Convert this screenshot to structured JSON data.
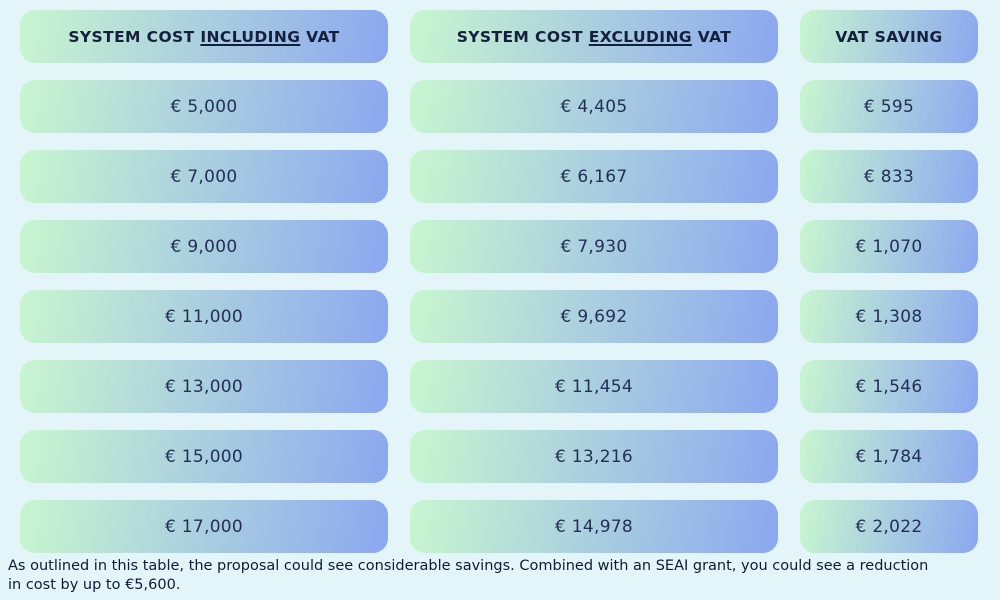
{
  "theme": {
    "background": "#e4f5fa",
    "pill_start": "#c8f6cf",
    "pill_end": "#8ba7f0",
    "text": "#1f2c50"
  },
  "table": {
    "headers": [
      {
        "prefix": "SYSTEM COST ",
        "underlined": "INCLUDING",
        "suffix": " VAT"
      },
      {
        "prefix": "SYSTEM COST ",
        "underlined": "EXCLUDING",
        "suffix": " VAT"
      },
      {
        "prefix": "",
        "underlined": "",
        "suffix": "VAT SAVING"
      }
    ]
  },
  "chart_data": {
    "type": "table",
    "columns": [
      "SYSTEM COST INCLUDING VAT",
      "SYSTEM COST EXCLUDING VAT",
      "VAT SAVING"
    ],
    "rows": [
      [
        "€ 5,000",
        "€ 4,405",
        "€ 595"
      ],
      [
        "€ 7,000",
        "€ 6,167",
        "€ 833"
      ],
      [
        "€ 9,000",
        "€ 7,930",
        "€ 1,070"
      ],
      [
        "€ 11,000",
        "€ 9,692",
        "€ 1,308"
      ],
      [
        "€ 13,000",
        "€ 11,454",
        "€ 1,546"
      ],
      [
        "€ 15,000",
        "€ 13,216",
        "€ 1,784"
      ],
      [
        "€ 17,000",
        "€ 14,978",
        "€ 2,022"
      ]
    ]
  },
  "footer": {
    "line1": "As outlined in this table, the proposal could see considerable savings. Combined with an SEAI grant, you could see a reduction",
    "line2": "in cost by up to €5,600."
  }
}
